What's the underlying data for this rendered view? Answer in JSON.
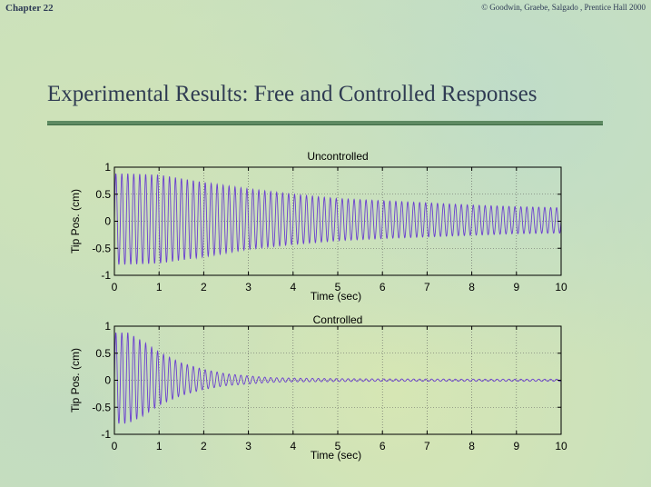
{
  "header": {
    "chapter": "Chapter 22",
    "copyright": "© Goodwin, Graebe, Salgado , Prentice Hall 2000"
  },
  "slide": {
    "title": "Experimental Results: Free and Controlled Responses"
  },
  "colors": {
    "signal": "#6a3fd0",
    "frame": "#000000",
    "grid": "#555555",
    "title": "#2f3b52",
    "rule": "#5e8a62"
  },
  "chart_data": [
    {
      "type": "line",
      "title": "Uncontrolled",
      "xlabel": "Time (sec)",
      "ylabel": "Tip Pos. (cm)",
      "xlim": [
        0,
        10
      ],
      "ylim": [
        -1,
        1
      ],
      "xticks": [
        0,
        1,
        2,
        3,
        4,
        5,
        6,
        7,
        8,
        9,
        10
      ],
      "yticks": [
        1,
        0.5,
        0,
        -0.5,
        -1
      ],
      "ytick_labels": [
        "1",
        "0.5",
        "0",
        "-0.5",
        "-1"
      ],
      "grid": true,
      "envelope": {
        "t": [
          0,
          0.3,
          1.0,
          2.0,
          3.0,
          4.0,
          5.0,
          6.0,
          7.0,
          8.0,
          9.0,
          10.0
        ],
        "upper": [
          0.88,
          0.88,
          0.86,
          0.72,
          0.6,
          0.5,
          0.42,
          0.38,
          0.34,
          0.3,
          0.27,
          0.25
        ],
        "lower": [
          -0.8,
          -0.8,
          -0.78,
          -0.66,
          -0.52,
          -0.43,
          -0.36,
          -0.32,
          -0.29,
          -0.26,
          -0.23,
          -0.22
        ]
      },
      "oscillation_frequency_hz": 7.5
    },
    {
      "type": "line",
      "title": "Controlled",
      "xlabel": "Time (sec)",
      "ylabel": "Tip Pos. (cm)",
      "xlim": [
        0,
        10
      ],
      "ylim": [
        -1,
        1
      ],
      "xticks": [
        0,
        1,
        2,
        3,
        4,
        5,
        6,
        7,
        8,
        9,
        10
      ],
      "yticks": [
        1,
        0.5,
        0,
        -0.5,
        -1
      ],
      "ytick_labels": [
        "1",
        "0.5",
        "0",
        "-0.5",
        "-1"
      ],
      "grid": true,
      "envelope": {
        "t": [
          0,
          0.3,
          0.6,
          1.0,
          1.5,
          2.0,
          2.5,
          3.0,
          3.5,
          4.0,
          5.0,
          6.0,
          8.0,
          10.0
        ],
        "upper": [
          0.88,
          0.88,
          0.74,
          0.52,
          0.32,
          0.2,
          0.12,
          0.08,
          0.05,
          0.04,
          0.03,
          0.025,
          0.02,
          0.02
        ],
        "lower": [
          -0.8,
          -0.8,
          -0.68,
          -0.46,
          -0.28,
          -0.17,
          -0.1,
          -0.07,
          -0.04,
          -0.03,
          -0.025,
          -0.02,
          -0.02,
          -0.02
        ]
      },
      "oscillation_frequency_hz": 7.5
    }
  ]
}
